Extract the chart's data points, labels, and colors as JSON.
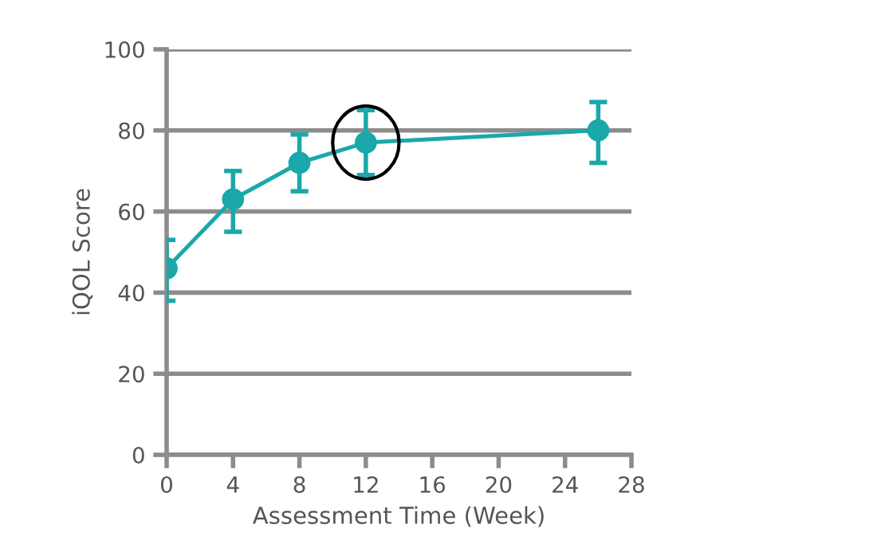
{
  "chart_data": {
    "type": "line",
    "xlabel": "Assessment Time (Week)",
    "ylabel": "iQOL Score",
    "x": [
      0,
      4,
      8,
      12,
      26
    ],
    "series": [
      {
        "color": "#1aa8aa",
        "values": [
          46,
          63,
          72,
          77,
          80
        ],
        "errors": [
          [
            38,
            53
          ],
          [
            55,
            70
          ],
          [
            65,
            79
          ],
          [
            69,
            85
          ],
          [
            72,
            87
          ]
        ]
      }
    ],
    "xlim": [
      0,
      28
    ],
    "xticks": [
      0,
      4,
      8,
      12,
      16,
      20,
      24,
      28
    ],
    "ylim": [
      0,
      100
    ],
    "yticks": [
      0,
      20,
      40,
      60,
      80,
      100
    ],
    "grid": "y",
    "marker": "circle",
    "line_style": "solid"
  }
}
